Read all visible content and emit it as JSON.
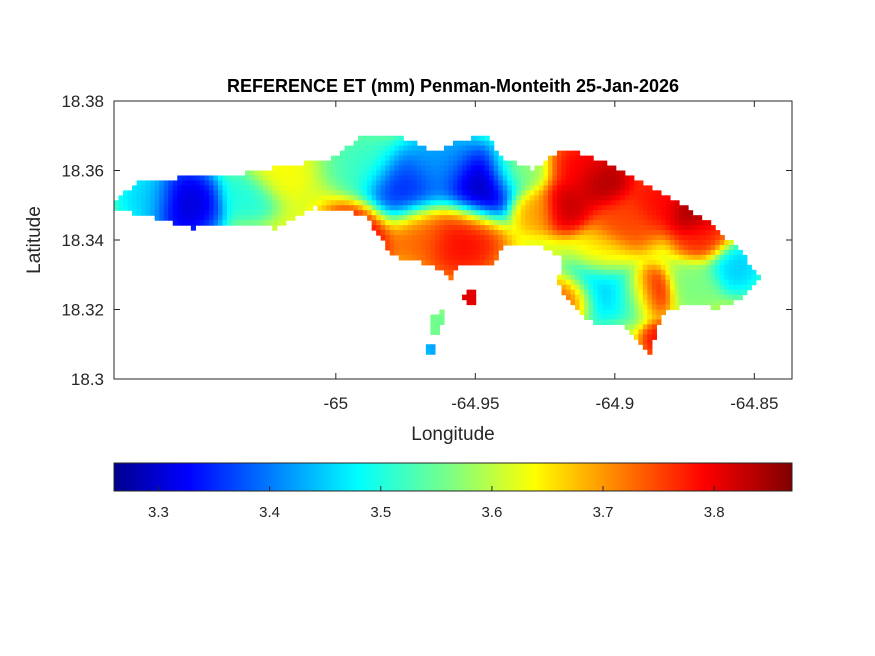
{
  "title": "REFERENCE ET (mm) Penman-Monteith 25-Jan-2026",
  "axes": {
    "xlabel": "Longitude",
    "ylabel": "Latitude",
    "xlim": [
      -65.0795,
      -64.8365
    ],
    "ylim": [
      18.3,
      18.38
    ],
    "xticks": [
      -65,
      -64.95,
      -64.9,
      -64.85
    ],
    "xtick_labels": [
      "-65",
      "-64.95",
      "-64.9",
      "-64.85"
    ],
    "yticks": [
      18.3,
      18.32,
      18.34,
      18.36,
      18.38
    ],
    "ytick_labels": [
      "18.3",
      "18.32",
      "18.34",
      "18.36",
      "18.38"
    ],
    "box": "on",
    "grid": "off"
  },
  "colorbar": {
    "colormap": "jet",
    "orientation": "horizontal",
    "location": "below",
    "range": [
      3.26,
      3.87
    ],
    "ticks": [
      3.3,
      3.4,
      3.5,
      3.6,
      3.7,
      3.8
    ],
    "tick_labels": [
      "3.3",
      "3.4",
      "3.5",
      "3.6",
      "3.7",
      "3.8"
    ]
  },
  "map_data": {
    "variable": "Reference evapotranspiration (mm)",
    "island_outline": [
      [
        -65.0795,
        18.3515
      ],
      [
        -65.071,
        18.3565
      ],
      [
        -65.055,
        18.358
      ],
      [
        -65.042,
        18.358
      ],
      [
        -65.0015,
        18.3635
      ],
      [
        -64.9905,
        18.37
      ],
      [
        -64.978,
        18.3705
      ],
      [
        -64.965,
        18.365
      ],
      [
        -64.956,
        18.3685
      ],
      [
        -64.946,
        18.3705
      ],
      [
        -64.9405,
        18.3635
      ],
      [
        -64.929,
        18.3605
      ],
      [
        -64.919,
        18.366
      ],
      [
        -64.9105,
        18.3645
      ],
      [
        -64.901,
        18.3615
      ],
      [
        -64.892,
        18.357
      ],
      [
        -64.879,
        18.3515
      ],
      [
        -64.8665,
        18.3455
      ],
      [
        -64.8545,
        18.3365
      ],
      [
        -64.848,
        18.329
      ],
      [
        -64.8555,
        18.323
      ],
      [
        -64.8635,
        18.3205
      ],
      [
        -64.8755,
        18.3215
      ],
      [
        -64.8835,
        18.3185
      ],
      [
        -64.8875,
        18.3075
      ],
      [
        -64.8975,
        18.3155
      ],
      [
        -64.9065,
        18.315
      ],
      [
        -64.9165,
        18.322
      ],
      [
        -64.9205,
        18.328
      ],
      [
        -64.9185,
        18.3345
      ],
      [
        -64.9265,
        18.3385
      ],
      [
        -64.9395,
        18.3385
      ],
      [
        -64.9445,
        18.3325
      ],
      [
        -64.9555,
        18.3335
      ],
      [
        -64.959,
        18.329
      ],
      [
        -64.9645,
        18.3325
      ],
      [
        -64.9795,
        18.3355
      ],
      [
        -64.99,
        18.3475
      ],
      [
        -65.008,
        18.3495
      ],
      [
        -65.022,
        18.3435
      ],
      [
        -65.0325,
        18.3445
      ],
      [
        -65.052,
        18.3435
      ],
      [
        -65.0645,
        18.3465
      ],
      [
        -65.0795,
        18.349
      ]
    ],
    "islets": [
      [
        [
          -64.9545,
          18.3245
        ],
        [
          -64.9505,
          18.3255
        ],
        [
          -64.9485,
          18.3225
        ],
        [
          -64.9535,
          18.321
        ]
      ],
      [
        [
          -64.9655,
          18.3185
        ],
        [
          -64.9615,
          18.3195
        ],
        [
          -64.9625,
          18.3125
        ],
        [
          -64.966,
          18.313
        ]
      ],
      [
        [
          -64.9675,
          18.3095
        ],
        [
          -64.9645,
          18.3095
        ],
        [
          -64.965,
          18.3065
        ],
        [
          -64.9675,
          18.3068
        ]
      ]
    ],
    "value_centers": [
      {
        "lon": -65.054,
        "lat": 18.3505,
        "value": 3.29,
        "r": 0.0095
      },
      {
        "lon": -65.068,
        "lat": 18.352,
        "value": 3.46,
        "r": 0.008
      },
      {
        "lon": -65.031,
        "lat": 18.353,
        "value": 3.5,
        "r": 0.007
      },
      {
        "lon": -65.022,
        "lat": 18.359,
        "value": 3.64,
        "r": 0.007
      },
      {
        "lon": -64.948,
        "lat": 18.356,
        "value": 3.26,
        "r": 0.01
      },
      {
        "lon": -64.976,
        "lat": 18.355,
        "value": 3.34,
        "r": 0.01
      },
      {
        "lon": -64.962,
        "lat": 18.362,
        "value": 3.42,
        "r": 0.01
      },
      {
        "lon": -64.99,
        "lat": 18.362,
        "value": 3.52,
        "r": 0.009
      },
      {
        "lon": -64.935,
        "lat": 18.36,
        "value": 3.58,
        "r": 0.008
      },
      {
        "lon": -64.992,
        "lat": 18.341,
        "value": 3.82,
        "r": 0.009
      },
      {
        "lon": -64.955,
        "lat": 18.34,
        "value": 3.8,
        "r": 0.01
      },
      {
        "lon": -64.97,
        "lat": 18.342,
        "value": 3.74,
        "r": 0.008
      },
      {
        "lon": -64.929,
        "lat": 18.349,
        "value": 3.7,
        "r": 0.006
      },
      {
        "lon": -64.917,
        "lat": 18.35,
        "value": 3.84,
        "r": 0.007
      },
      {
        "lon": -64.904,
        "lat": 18.357,
        "value": 3.86,
        "r": 0.008
      },
      {
        "lon": -64.912,
        "lat": 18.361,
        "value": 3.8,
        "r": 0.008
      },
      {
        "lon": -64.884,
        "lat": 18.351,
        "value": 3.8,
        "r": 0.008
      },
      {
        "lon": -64.872,
        "lat": 18.348,
        "value": 3.87,
        "r": 0.007
      },
      {
        "lon": -64.868,
        "lat": 18.341,
        "value": 3.78,
        "r": 0.007
      },
      {
        "lon": -64.897,
        "lat": 18.345,
        "value": 3.76,
        "r": 0.008
      },
      {
        "lon": -64.904,
        "lat": 18.336,
        "value": 3.66,
        "r": 0.007
      },
      {
        "lon": -64.888,
        "lat": 18.325,
        "value": 3.82,
        "r": 0.006
      },
      {
        "lon": -64.906,
        "lat": 18.326,
        "value": 3.45,
        "r": 0.009
      },
      {
        "lon": -64.893,
        "lat": 18.324,
        "value": 3.49,
        "r": 0.006
      },
      {
        "lon": -64.857,
        "lat": 18.332,
        "value": 3.45,
        "r": 0.007
      },
      {
        "lon": -64.871,
        "lat": 18.327,
        "value": 3.56,
        "r": 0.007
      },
      {
        "lon": -64.916,
        "lat": 18.323,
        "value": 3.78,
        "r": 0.006
      },
      {
        "lon": -64.883,
        "lat": 18.311,
        "value": 3.8,
        "r": 0.005
      },
      {
        "lon": -64.952,
        "lat": 18.3235,
        "value": 3.83,
        "r": 0.004
      },
      {
        "lon": -64.963,
        "lat": 18.316,
        "value": 3.55,
        "r": 0.004
      },
      {
        "lon": -64.965,
        "lat": 18.309,
        "value": 3.42,
        "r": 0.003
      }
    ],
    "background_value": 3.62
  }
}
